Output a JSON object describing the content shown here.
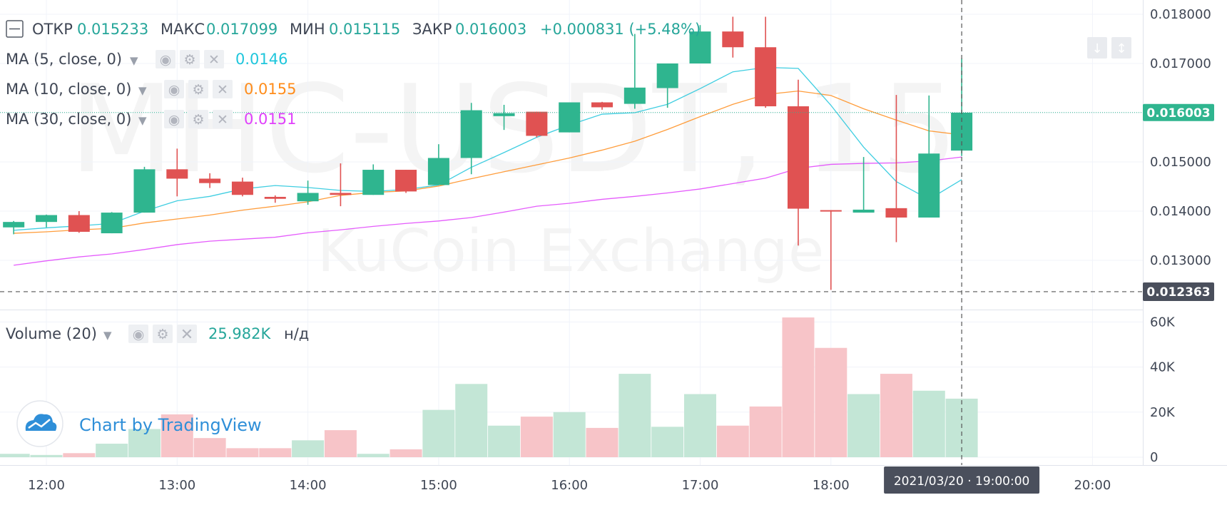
{
  "legend": {
    "open_label": "ОТКР",
    "open_value": "0.015233",
    "high_label": "МАКС",
    "high_value": "0.017099",
    "low_label": "МИН",
    "low_value": "0.015115",
    "close_label": "ЗАКР",
    "close_value": "0.016003",
    "change": "+0.000831 (+5.48%)"
  },
  "indicators": [
    {
      "label": "MA (5, close, 0)",
      "value": "0.0146",
      "color": "#1fc6dc"
    },
    {
      "label": "MA (10, close, 0)",
      "value": "0.0155",
      "color": "#ff8c1a"
    },
    {
      "label": "MA (30, close, 0)",
      "value": "0.0151",
      "color": "#e040fb"
    }
  ],
  "volume_legend": {
    "label": "Volume (20)",
    "value": "25.982K",
    "na": "н/д"
  },
  "watermark": {
    "symbol": "MHC-USDT, 15",
    "exchange": "KuCoin Exchange"
  },
  "branding": {
    "text": "Chart by TradingView"
  },
  "colors": {
    "up": "#26a69a",
    "up_body": "#2fb58f",
    "down": "#e05252",
    "up_volume": "#c3e6d6",
    "down_volume": "#f7c4c8",
    "crosshair": "#555555",
    "last_price": "#2fb58f"
  },
  "crosshair": {
    "time_label": "2021/03/20 · 19:00:00",
    "price_label": "0.012363",
    "price": 0.012363,
    "time": "19:00"
  },
  "last_price": {
    "label": "0.016003",
    "price": 0.016003
  },
  "chart_data": {
    "type": "candlestick",
    "price_ticks": [
      0.013,
      0.014,
      0.015,
      0.016,
      0.017,
      0.018
    ],
    "price_tick_labels": [
      "0.013000",
      "0.014000",
      "0.015000",
      "0.016000",
      "0.017000",
      "0.018000"
    ],
    "volume_ticks": [
      0,
      20000,
      40000,
      60000
    ],
    "volume_tick_labels": [
      "0",
      "20K",
      "40K",
      "60K"
    ],
    "time_ticks": [
      "12:00",
      "13:00",
      "14:00",
      "15:00",
      "16:00",
      "17:00",
      "18:00",
      "19:00",
      "20:00"
    ],
    "time_tick_labels": [
      "12:00",
      "13:00",
      "14:00",
      "15:00",
      "16:00",
      "17:00",
      "18:00",
      "",
      "20:00"
    ],
    "candles": [
      {
        "time": "11:45",
        "open": 0.01367,
        "high": 0.0138,
        "low": 0.01353,
        "close": 0.01378,
        "volume": 1500
      },
      {
        "time": "12:00",
        "open": 0.01378,
        "high": 0.01393,
        "low": 0.01367,
        "close": 0.01392,
        "volume": 1000
      },
      {
        "time": "12:15",
        "open": 0.01392,
        "high": 0.014,
        "low": 0.01356,
        "close": 0.01358,
        "volume": 1800
      },
      {
        "time": "12:30",
        "open": 0.01355,
        "high": 0.01398,
        "low": 0.01355,
        "close": 0.01397,
        "volume": 6000
      },
      {
        "time": "12:45",
        "open": 0.01397,
        "high": 0.0149,
        "low": 0.01397,
        "close": 0.01485,
        "volume": 12500
      },
      {
        "time": "13:00",
        "open": 0.01485,
        "high": 0.01527,
        "low": 0.0143,
        "close": 0.01466,
        "volume": 19000
      },
      {
        "time": "13:15",
        "open": 0.01466,
        "high": 0.01477,
        "low": 0.01447,
        "close": 0.01457,
        "volume": 8500
      },
      {
        "time": "13:30",
        "open": 0.0146,
        "high": 0.01468,
        "low": 0.0143,
        "close": 0.01433,
        "volume": 4000
      },
      {
        "time": "13:45",
        "open": 0.01429,
        "high": 0.01432,
        "low": 0.01417,
        "close": 0.01425,
        "volume": 4000
      },
      {
        "time": "14:00",
        "open": 0.0142,
        "high": 0.01462,
        "low": 0.01413,
        "close": 0.01437,
        "volume": 7500
      },
      {
        "time": "14:15",
        "open": 0.01437,
        "high": 0.01497,
        "low": 0.0141,
        "close": 0.01433,
        "volume": 12000
      },
      {
        "time": "14:30",
        "open": 0.01433,
        "high": 0.01495,
        "low": 0.01433,
        "close": 0.01484,
        "volume": 1500
      },
      {
        "time": "14:45",
        "open": 0.01484,
        "high": 0.01484,
        "low": 0.01437,
        "close": 0.0144,
        "volume": 3500
      },
      {
        "time": "15:00",
        "open": 0.01453,
        "high": 0.01536,
        "low": 0.01453,
        "close": 0.01508,
        "volume": 21000
      },
      {
        "time": "15:15",
        "open": 0.01508,
        "high": 0.0162,
        "low": 0.01475,
        "close": 0.01605,
        "volume": 32500
      },
      {
        "time": "15:30",
        "open": 0.01593,
        "high": 0.01616,
        "low": 0.01565,
        "close": 0.01599,
        "volume": 14000
      },
      {
        "time": "15:45",
        "open": 0.01602,
        "high": 0.01602,
        "low": 0.0155,
        "close": 0.01553,
        "volume": 18000
      },
      {
        "time": "16:00",
        "open": 0.0156,
        "high": 0.01621,
        "low": 0.0156,
        "close": 0.01621,
        "volume": 20000
      },
      {
        "time": "16:15",
        "open": 0.01621,
        "high": 0.01622,
        "low": 0.01606,
        "close": 0.01611,
        "volume": 13000
      },
      {
        "time": "16:30",
        "open": 0.01618,
        "high": 0.0176,
        "low": 0.01608,
        "close": 0.01651,
        "volume": 37000
      },
      {
        "time": "16:45",
        "open": 0.0165,
        "high": 0.017,
        "low": 0.0161,
        "close": 0.017,
        "volume": 13500
      },
      {
        "time": "17:00",
        "open": 0.017,
        "high": 0.01778,
        "low": 0.017,
        "close": 0.01765,
        "volume": 28000
      },
      {
        "time": "17:15",
        "open": 0.01765,
        "high": 0.01795,
        "low": 0.01712,
        "close": 0.01733,
        "volume": 14000
      },
      {
        "time": "17:30",
        "open": 0.01733,
        "high": 0.01795,
        "low": 0.0161,
        "close": 0.01613,
        "volume": 22500
      },
      {
        "time": "17:45",
        "open": 0.01613,
        "high": 0.01667,
        "low": 0.0133,
        "close": 0.01405,
        "volume": 62000
      },
      {
        "time": "18:00",
        "open": 0.01402,
        "high": 0.01402,
        "low": 0.0124,
        "close": 0.014,
        "volume": 48500
      },
      {
        "time": "18:15",
        "open": 0.01397,
        "high": 0.0151,
        "low": 0.01397,
        "close": 0.01403,
        "volume": 28000
      },
      {
        "time": "18:30",
        "open": 0.01406,
        "high": 0.01636,
        "low": 0.01337,
        "close": 0.01387,
        "volume": 37000
      },
      {
        "time": "18:45",
        "open": 0.01387,
        "high": 0.01635,
        "low": 0.01387,
        "close": 0.01517,
        "volume": 29500
      },
      {
        "time": "19:00",
        "open": 0.01523,
        "high": 0.0171,
        "low": 0.01512,
        "close": 0.016,
        "volume": 25982
      }
    ],
    "ma5": [
      0.01361,
      0.01366,
      0.0137,
      0.01375,
      0.014,
      0.01421,
      0.0143,
      0.01445,
      0.01452,
      0.01448,
      0.01442,
      0.0144,
      0.01444,
      0.01453,
      0.01489,
      0.01519,
      0.0155,
      0.01575,
      0.01597,
      0.016,
      0.01617,
      0.01649,
      0.01683,
      0.01692,
      0.0169,
      0.01615,
      0.0153,
      0.0146,
      0.01424,
      0.01464
    ],
    "ma10": [
      0.01355,
      0.01358,
      0.01362,
      0.01365,
      0.01376,
      0.01384,
      0.01392,
      0.01402,
      0.0141,
      0.01419,
      0.01432,
      0.01438,
      0.01441,
      0.01451,
      0.01466,
      0.0148,
      0.01494,
      0.01508,
      0.01524,
      0.01542,
      0.01566,
      0.01592,
      0.01617,
      0.01637,
      0.01644,
      0.01635,
      0.01608,
      0.01585,
      0.01563,
      0.01555
    ],
    "ma30": [
      0.0129,
      0.01299,
      0.01307,
      0.01313,
      0.01322,
      0.01332,
      0.01339,
      0.01343,
      0.01347,
      0.01356,
      0.01362,
      0.01369,
      0.01375,
      0.0138,
      0.01387,
      0.01398,
      0.0141,
      0.01416,
      0.01424,
      0.0143,
      0.01437,
      0.01445,
      0.01456,
      0.01467,
      0.01487,
      0.01495,
      0.01497,
      0.01498,
      0.01502,
      0.0151
    ]
  }
}
